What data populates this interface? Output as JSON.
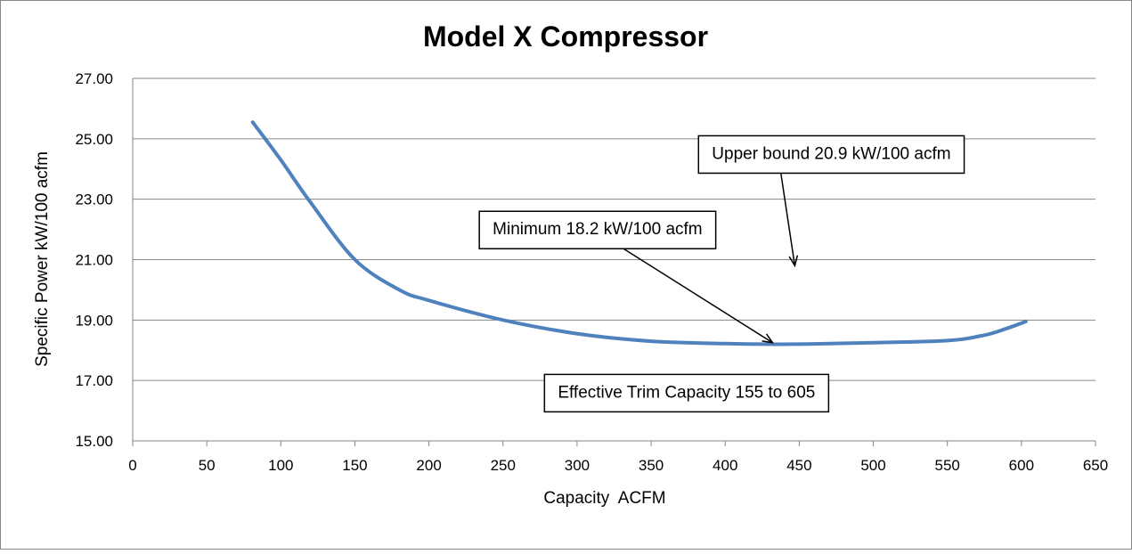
{
  "chart_data": {
    "type": "line",
    "title": "Model X Compressor",
    "xlabel": "Capacity  ACFM",
    "ylabel": "Specific Power kW/100 acfm",
    "xlim": [
      0,
      650
    ],
    "ylim": [
      15,
      27
    ],
    "xticks": [
      "0",
      "50",
      "100",
      "150",
      "200",
      "250",
      "300",
      "350",
      "400",
      "450",
      "500",
      "550",
      "600",
      "650"
    ],
    "yticks": [
      "15.00",
      "17.00",
      "19.00",
      "21.00",
      "23.00",
      "25.00",
      "27.00"
    ],
    "grid": "horizontal",
    "legend": "none",
    "series": [
      {
        "color": "#4F81BD",
        "x": [
          81,
          100,
          120,
          150,
          180,
          200,
          250,
          300,
          350,
          400,
          435,
          460,
          500,
          550,
          575,
          590,
          603
        ],
        "y": [
          25.55,
          24.3,
          22.9,
          21.0,
          20.0,
          19.65,
          19.0,
          18.55,
          18.3,
          18.22,
          18.2,
          18.21,
          18.25,
          18.32,
          18.5,
          18.72,
          18.95
        ]
      }
    ],
    "annotations": [
      {
        "id": "upper",
        "text": "Upper bound 20.9 kW/100 acfm",
        "box_x": 382,
        "box_y": 25.1,
        "arrow_to_x": 447,
        "arrow_to_y": 20.8
      },
      {
        "id": "min",
        "text": "Minimum 18.2 kW/100 acfm",
        "box_x": 234,
        "box_y": 22.6,
        "arrow_to_x": 432,
        "arrow_to_y": 18.25
      },
      {
        "id": "trim",
        "text": "Effective Trim Capacity 155 to 605",
        "box_x": 278,
        "box_y": 17.2
      }
    ]
  }
}
